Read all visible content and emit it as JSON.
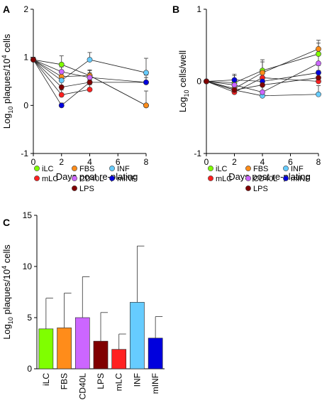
{
  "panel_labels": [
    "A",
    "B",
    "C"
  ],
  "colors": {
    "iLC": "#7fff00",
    "mLC": "#ff2020",
    "FBS": "#ff8c1a",
    "CD40L": "#cc66ff",
    "LPS": "#800000",
    "INF": "#66ccff",
    "mINF": "#0000dd"
  },
  "legend": {
    "rows": [
      [
        "iLC",
        "FBS",
        "INF"
      ],
      [
        "mLC",
        "CD40L",
        "mINF"
      ],
      [
        "",
        "LPS",
        ""
      ]
    ]
  },
  "chart_data": [
    {
      "panel": "A",
      "type": "line",
      "xlabel": "Days post re-plating",
      "ylabel": "Log10 plaques/10^4 cells",
      "ylabel_parts": {
        "pre": "Log",
        "sub": "10",
        "mid": " plaques/10",
        "sup": "4",
        "post": " cells"
      },
      "xlim": [
        0,
        8
      ],
      "ylim": [
        -1,
        2
      ],
      "xticks": [
        "0",
        "2",
        "4",
        "6",
        "8"
      ],
      "yticks": [
        "-1",
        "0",
        "1",
        "2"
      ],
      "x": [
        0,
        2,
        4,
        8
      ],
      "series": [
        {
          "name": "iLC",
          "values": [
            0.95,
            0.85,
            0.62,
            0.0
          ],
          "err": [
            0.05,
            0.18,
            0.12,
            0.3
          ]
        },
        {
          "name": "FBS",
          "values": [
            0.95,
            0.6,
            0.62,
            0.0
          ],
          "err": [
            0.05,
            0.2,
            0.1,
            0.0
          ]
        },
        {
          "name": "INF",
          "values": [
            0.95,
            0.52,
            0.95,
            0.68
          ],
          "err": [
            0.05,
            0.15,
            0.15,
            0.3
          ]
        },
        {
          "name": "mLC",
          "values": [
            0.95,
            0.22,
            0.33,
            null
          ],
          "err": [
            0.05,
            0.1,
            0.1,
            0
          ]
        },
        {
          "name": "CD40L",
          "values": [
            0.95,
            0.7,
            0.58,
            0.48
          ],
          "err": [
            0.05,
            0.15,
            0.1,
            0.15
          ]
        },
        {
          "name": "mINF",
          "values": [
            0.95,
            0.0,
            0.48,
            0.48
          ],
          "err": [
            0.05,
            0.05,
            0.05,
            0.1
          ]
        },
        {
          "name": "LPS",
          "values": [
            0.95,
            0.38,
            0.48,
            null
          ],
          "err": [
            0.05,
            0.12,
            0.1,
            0
          ]
        }
      ]
    },
    {
      "panel": "B",
      "type": "line",
      "xlabel": "Days post re-plating",
      "ylabel": "Log10 cells/well",
      "ylabel_parts": {
        "pre": "Log",
        "sub": "10",
        "mid": " cells/well",
        "sup": "",
        "post": ""
      },
      "xlim": [
        0,
        8
      ],
      "ylim": [
        -1,
        1
      ],
      "xticks": [
        "0",
        "2",
        "4",
        "6",
        "8"
      ],
      "yticks": [
        "-1",
        "0",
        "1"
      ],
      "x": [
        0,
        2,
        4,
        8
      ],
      "series": [
        {
          "name": "iLC",
          "values": [
            0.0,
            -0.02,
            0.15,
            0.38
          ],
          "err": [
            0.02,
            0.1,
            0.15,
            0.15
          ]
        },
        {
          "name": "FBS",
          "values": [
            0.0,
            -0.1,
            0.12,
            0.45
          ],
          "err": [
            0.02,
            0.1,
            0.15,
            0.12
          ]
        },
        {
          "name": "INF",
          "values": [
            0.0,
            -0.12,
            -0.2,
            -0.18
          ],
          "err": [
            0.02,
            0.08,
            0.2,
            0.12
          ]
        },
        {
          "name": "mLC",
          "values": [
            0.0,
            -0.15,
            0.05,
            0.0
          ],
          "err": [
            0.02,
            0.08,
            0.1,
            0.1
          ]
        },
        {
          "name": "CD40L",
          "values": [
            0.0,
            -0.05,
            -0.15,
            0.25
          ],
          "err": [
            0.02,
            0.08,
            0.2,
            0.2
          ]
        },
        {
          "name": "mINF",
          "values": [
            0.0,
            0.02,
            0.0,
            0.12
          ],
          "err": [
            0.02,
            0.08,
            0.1,
            0.1
          ]
        },
        {
          "name": "LPS",
          "values": [
            0.0,
            -0.12,
            -0.05,
            0.05
          ],
          "err": [
            0.02,
            0.08,
            0.1,
            0.1
          ]
        }
      ]
    },
    {
      "panel": "C",
      "type": "bar",
      "xlabel": "",
      "ylabel": "Log10 plaques/10^4 cells",
      "ylabel_parts": {
        "pre": "Log",
        "sub": "10",
        "mid": " plaques/10",
        "sup": "4",
        "post": " cells"
      },
      "ylim": [
        0,
        15
      ],
      "yticks": [
        "0",
        "5",
        "10",
        "15"
      ],
      "categories": [
        "iLC",
        "FBS",
        "CD40L",
        "LPS",
        "mLC",
        "INF",
        "mINF"
      ],
      "values": [
        3.9,
        4.0,
        5.0,
        2.7,
        1.9,
        6.5,
        3.0
      ],
      "err": [
        3.0,
        3.4,
        4.0,
        2.8,
        1.5,
        5.5,
        2.1
      ]
    }
  ]
}
